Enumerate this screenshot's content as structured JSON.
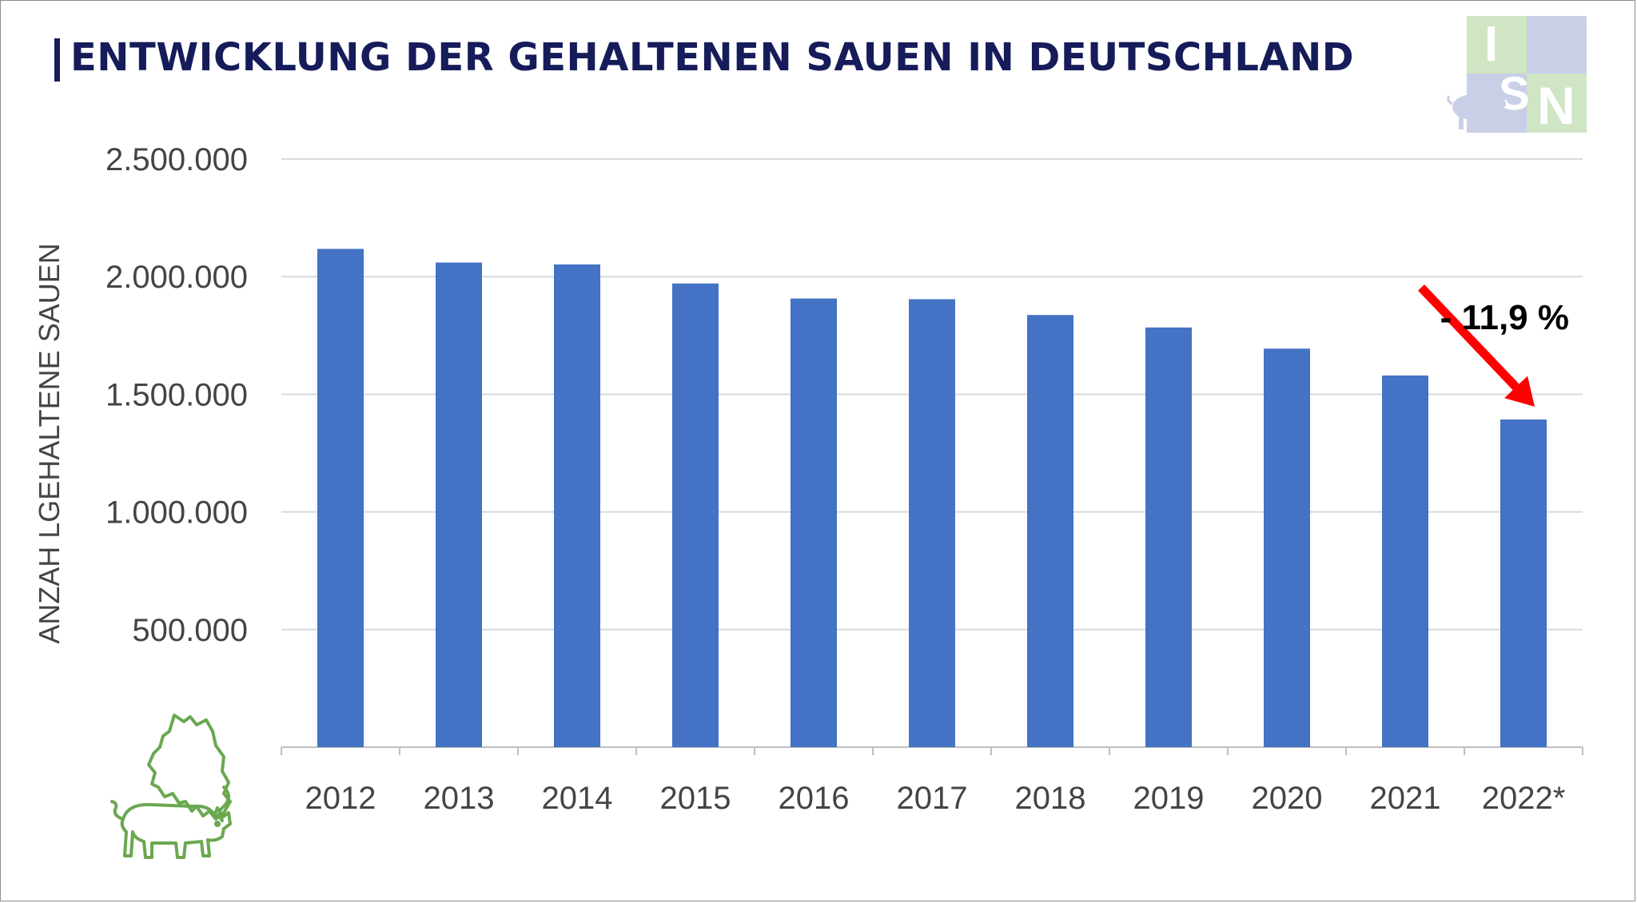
{
  "title": "ENTWICKLUNG DER GEHALTENEN SAUEN IN DEUTSCHLAND",
  "logo": {
    "letters": [
      "I",
      "S",
      "N"
    ]
  },
  "colors": {
    "bar": "#4472c4",
    "title": "#161c5a",
    "arrow": "#ff0000",
    "grid": "#d9d9d9",
    "logo_blue": "#c9cfe6",
    "logo_green": "#cfe5c4",
    "pig_outline": "#6aa84f"
  },
  "icons": [
    "isn-logo-pig-icon",
    "germany-map-pig-icon",
    "red-arrow-icon"
  ],
  "chart_data": {
    "type": "bar",
    "title": "ENTWICKLUNG DER GEHALTENEN SAUEN IN DEUTSCHLAND",
    "xlabel": "",
    "ylabel": "ANZAH LGEHALTENE SAUEN",
    "categories": [
      "2012",
      "2013",
      "2014",
      "2015",
      "2016",
      "2017",
      "2018",
      "2019",
      "2020",
      "2021",
      "2022*"
    ],
    "values": [
      2118000,
      2060000,
      2052000,
      1971000,
      1907000,
      1904000,
      1837000,
      1784000,
      1694000,
      1580000,
      1393000
    ],
    "ylim": [
      0,
      2500000
    ],
    "yticks": [
      0,
      500000,
      1000000,
      1500000,
      2000000,
      2500000
    ],
    "ytick_labels": [
      "",
      "500.000",
      "1.000.000",
      "1.500.000",
      "2.000.000",
      "2.500.000"
    ],
    "grid": true,
    "legend": "none",
    "annotations": [
      {
        "text": "- 11,9 %",
        "from": "2021",
        "to": "2022*"
      }
    ]
  }
}
